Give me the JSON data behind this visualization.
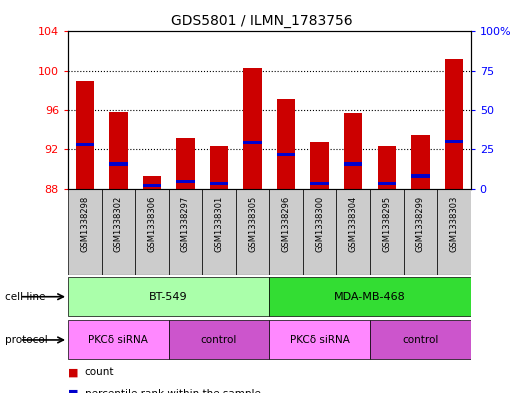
{
  "title": "GDS5801 / ILMN_1783756",
  "samples": [
    "GSM1338298",
    "GSM1338302",
    "GSM1338306",
    "GSM1338297",
    "GSM1338301",
    "GSM1338305",
    "GSM1338296",
    "GSM1338300",
    "GSM1338304",
    "GSM1338295",
    "GSM1338299",
    "GSM1338303"
  ],
  "red_values": [
    99.0,
    95.8,
    89.3,
    93.2,
    92.3,
    100.3,
    97.1,
    92.7,
    95.7,
    92.3,
    93.5,
    101.2
  ],
  "blue_values": [
    92.5,
    90.5,
    88.3,
    88.7,
    88.5,
    92.7,
    91.5,
    88.5,
    90.5,
    88.5,
    89.3,
    92.8
  ],
  "ylim_left": [
    88,
    104
  ],
  "ylim_right": [
    0,
    100
  ],
  "yticks_left": [
    88,
    92,
    96,
    100,
    104
  ],
  "yticks_right": [
    0,
    25,
    50,
    75,
    100
  ],
  "ytick_labels_right": [
    "0",
    "25",
    "50",
    "75",
    "100%"
  ],
  "bar_width": 0.55,
  "bar_color_red": "#CC0000",
  "bar_color_blue": "#0000CC",
  "base_value": 88,
  "sample_bg_color": "#CCCCCC",
  "cell_line_groups": [
    {
      "label": "BT-549",
      "start": 0,
      "end": 5,
      "color": "#AAFFAA"
    },
    {
      "label": "MDA-MB-468",
      "start": 6,
      "end": 11,
      "color": "#33DD33"
    }
  ],
  "prot_groups": [
    {
      "label": "PKCδ siRNA",
      "start": 0,
      "end": 2,
      "color": "#FF88FF"
    },
    {
      "label": "control",
      "start": 3,
      "end": 5,
      "color": "#CC55CC"
    },
    {
      "label": "PKCδ siRNA",
      "start": 6,
      "end": 8,
      "color": "#FF88FF"
    },
    {
      "label": "control",
      "start": 9,
      "end": 11,
      "color": "#CC55CC"
    }
  ]
}
